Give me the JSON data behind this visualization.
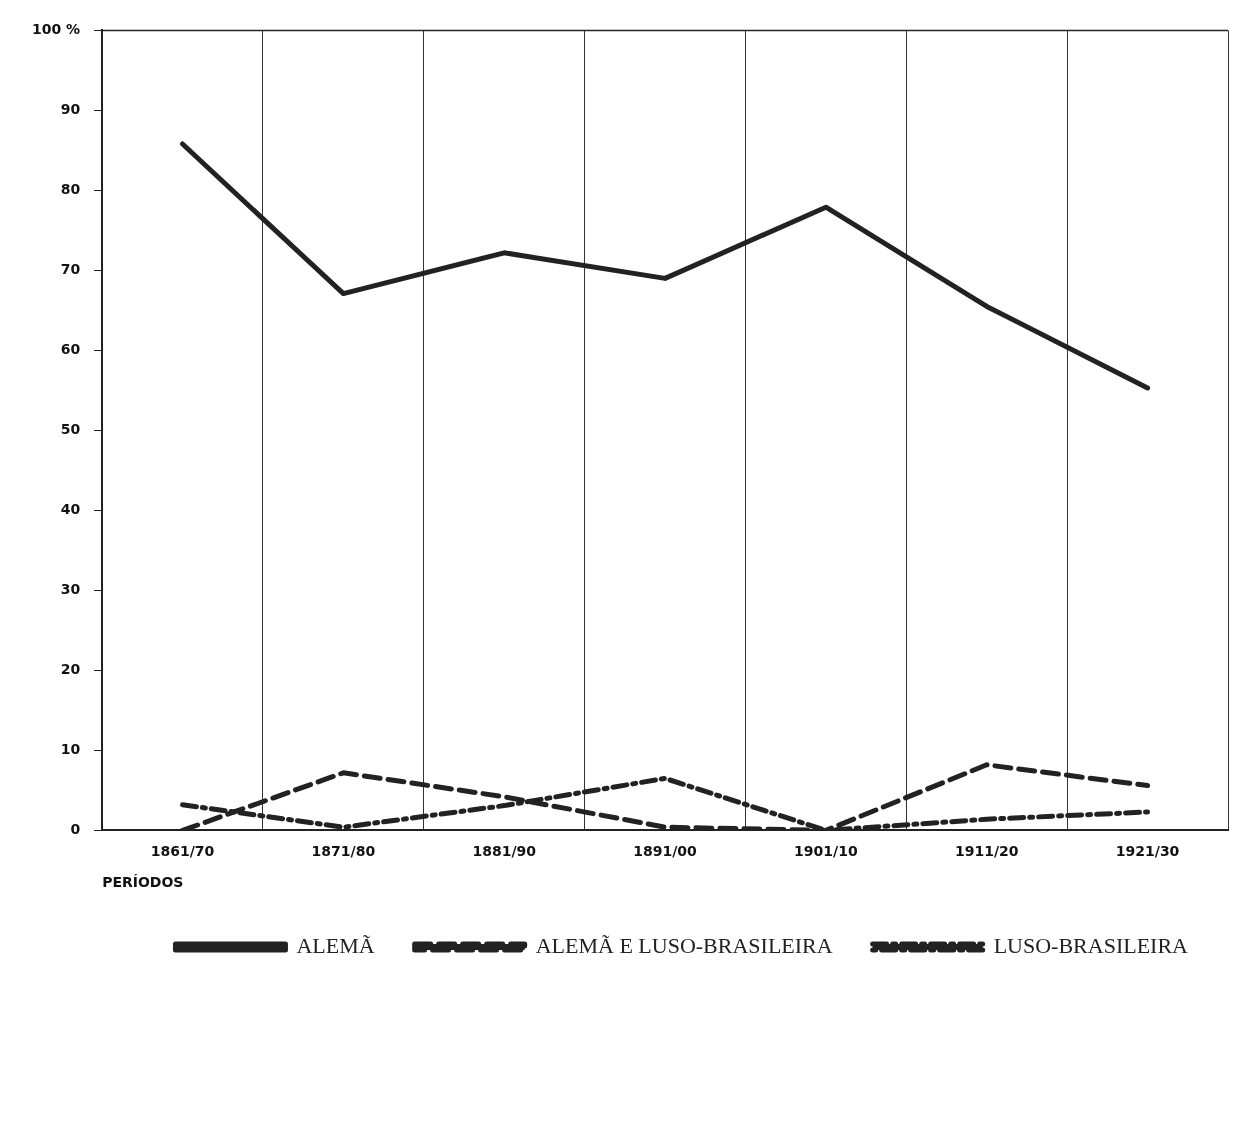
{
  "chart_data": {
    "type": "line",
    "xlabel": "PERÍODOS",
    "categories": [
      "1861/70",
      "1871/80",
      "1881/90",
      "1891/00",
      "1901/10",
      "1911/20",
      "1921/30"
    ],
    "series": [
      {
        "name": "ALEMÃ",
        "color": "#222222",
        "line_style": "solid",
        "values": [
          85.8,
          67.1,
          72.2,
          69.0,
          77.9,
          65.5,
          55.3
        ]
      },
      {
        "name": "ALEMÃ E LUSO-BRASILEIRA",
        "color": "#222222",
        "line_style": "dashed",
        "values": [
          0,
          7.2,
          4.2,
          0.4,
          0,
          8.2,
          5.6
        ]
      },
      {
        "name": "LUSO-BRASILEIRA",
        "color": "#222222",
        "line_style": "dotted",
        "values": [
          3.2,
          0.4,
          3.1,
          6.5,
          0,
          1.4,
          2.3
        ]
      }
    ],
    "ylim": [
      0,
      100
    ],
    "yticks": [
      0,
      10,
      20,
      30,
      40,
      50,
      60,
      70,
      80,
      90,
      {
        "value": 100,
        "label": "100 %"
      }
    ],
    "grid": "x",
    "legend": "bottom right",
    "marker": "none"
  }
}
